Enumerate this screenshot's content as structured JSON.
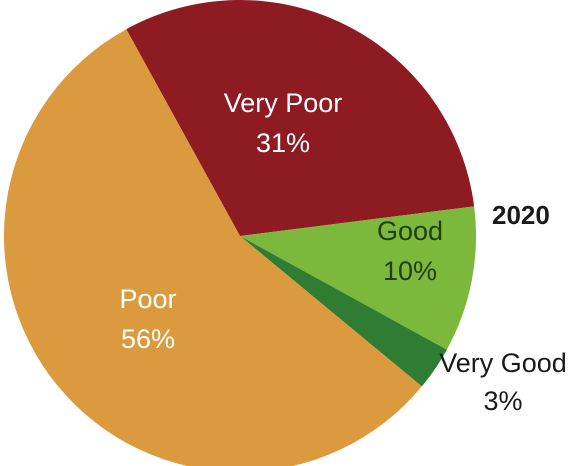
{
  "chart_data": {
    "type": "pie",
    "year_label": "2020",
    "slices": [
      {
        "label": "Very Poor",
        "value": 31,
        "display": "31%",
        "color": "#8e1a22",
        "text_color": "#ffffff"
      },
      {
        "label": "Good",
        "value": 10,
        "display": "10%",
        "color": "#7cb83c",
        "text_color": "#1f3f10"
      },
      {
        "label": "Very Good",
        "value": 3,
        "display": "3%",
        "color": "#2e7d32",
        "text_color": "#1a1a1a"
      },
      {
        "label": "Poor",
        "value": 56,
        "display": "56%",
        "color": "#dc9a3e",
        "text_color": "#ffffff"
      }
    ]
  }
}
